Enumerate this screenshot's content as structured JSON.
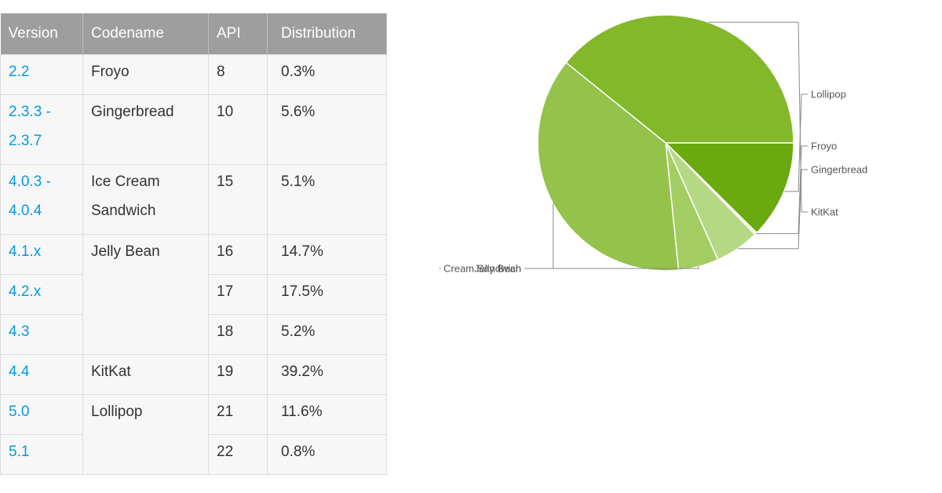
{
  "table": {
    "headers": [
      "Version",
      "Codename",
      "API",
      "Distribution"
    ],
    "groups": [
      {
        "codename": "Froyo",
        "rows": [
          {
            "version": "2.2",
            "api": "8",
            "distribution": "0.3%"
          }
        ]
      },
      {
        "codename": "Gingerbread",
        "rows": [
          {
            "version": "2.3.3 - 2.3.7",
            "api": "10",
            "distribution": "5.6%"
          }
        ]
      },
      {
        "codename": "Ice Cream Sandwich",
        "rows": [
          {
            "version": "4.0.3 - 4.0.4",
            "api": "15",
            "distribution": "5.1%"
          }
        ]
      },
      {
        "codename": "Jelly Bean",
        "rows": [
          {
            "version": "4.1.x",
            "api": "16",
            "distribution": "14.7%"
          },
          {
            "version": "4.2.x",
            "api": "17",
            "distribution": "17.5%"
          },
          {
            "version": "4.3",
            "api": "18",
            "distribution": "5.2%"
          }
        ]
      },
      {
        "codename": "KitKat",
        "rows": [
          {
            "version": "4.4",
            "api": "19",
            "distribution": "39.2%"
          }
        ]
      },
      {
        "codename": "Lollipop",
        "rows": [
          {
            "version": "5.0",
            "api": "21",
            "distribution": "11.6%"
          },
          {
            "version": "5.1",
            "api": "22",
            "distribution": "0.8%"
          }
        ]
      }
    ]
  },
  "chart_data": {
    "type": "pie",
    "slices": [
      {
        "label": "Lollipop",
        "value": 12.4,
        "color": "#6aaa0f"
      },
      {
        "label": "Froyo",
        "value": 0.3,
        "color": "#e8f3c6"
      },
      {
        "label": "Gingerbread",
        "value": 5.6,
        "color": "#b5d884"
      },
      {
        "label": "Ice Cream Sandwich",
        "value": 5.1,
        "color": "#a3cd62"
      },
      {
        "label": "Jelly Bean",
        "value": 37.4,
        "color": "#94c24b"
      },
      {
        "label": "KitKat",
        "value": 39.2,
        "color": "#82b82a"
      }
    ],
    "start_angle_deg": 0,
    "direction": "clockwise",
    "legend": "leader-line labels"
  }
}
